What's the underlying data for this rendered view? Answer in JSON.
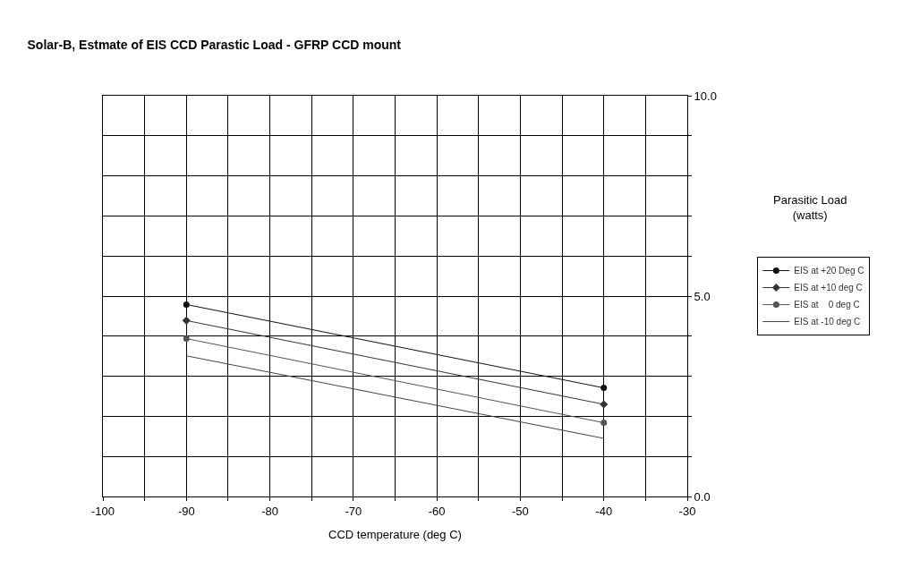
{
  "chart_data": {
    "type": "line",
    "title": "Solar-B, Estmate of EIS CCD Parastic Load - GFRP CCD mount",
    "xlabel": "CCD temperature (deg C)",
    "ylabel": "Parasitic Load\n(watts)",
    "x": [
      -90,
      -40
    ],
    "series": [
      {
        "name": "EIS at +20 Deg C",
        "color": "#111111",
        "values": [
          4.79,
          2.71
        ],
        "marker": "circle"
      },
      {
        "name": "EIS at +10 deg C",
        "color": "#333333",
        "values": [
          4.39,
          2.3
        ],
        "marker": "diamond"
      },
      {
        "name": "EIS at    0 deg C",
        "color": "#555555",
        "values": [
          3.94,
          1.84
        ],
        "marker": "circle"
      },
      {
        "name": "EIS at -10 deg C",
        "color": "#444444",
        "values": [
          3.51,
          1.45
        ],
        "marker": "none"
      }
    ],
    "xlim": [
      -100,
      -30
    ],
    "xticks": [
      -100,
      {
        "value": -95,
        "label": null
      },
      -90,
      {
        "value": -85,
        "label": null
      },
      -80,
      {
        "value": -75,
        "label": null
      },
      -70,
      {
        "value": -65,
        "label": null
      },
      -60,
      {
        "value": -55,
        "label": null
      },
      -50,
      {
        "value": -45,
        "label": null
      },
      -40,
      {
        "value": -35,
        "label": null
      },
      -30
    ],
    "ylim": [
      0,
      10
    ],
    "yticks": [
      {
        "value": 0,
        "label": "0.0"
      },
      {
        "value": 1,
        "label": null
      },
      {
        "value": 2,
        "label": null
      },
      {
        "value": 3,
        "label": null
      },
      {
        "value": 4,
        "label": null
      },
      {
        "value": 5,
        "label": "5.0"
      },
      {
        "value": 6,
        "label": null
      },
      {
        "value": 7,
        "label": null
      },
      {
        "value": 8,
        "label": null
      },
      {
        "value": 9,
        "label": null
      },
      {
        "value": 10,
        "label": "10.0"
      }
    ],
    "grid": true,
    "legend": "right",
    "line_style": "solid"
  }
}
